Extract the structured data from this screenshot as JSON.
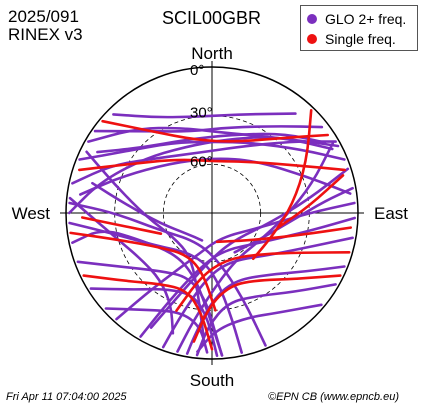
{
  "header": {
    "date": "2025/091",
    "rinex": "RINEX v3",
    "station": "SCIL00GBR"
  },
  "legend": {
    "items": [
      {
        "label": "GLO 2+ freq.",
        "color": "#7b2fbe"
      },
      {
        "label": "Single freq.",
        "color": "#ee1111"
      }
    ]
  },
  "footer": {
    "timestamp": "Fri Apr 11 07:04:00 2025",
    "credit": "©EPN CB (www.epncb.eu)"
  },
  "chart_data": {
    "type": "scatter",
    "projection": "polar skyplot",
    "directions": {
      "north": "North",
      "south": "South",
      "east": "East",
      "west": "West"
    },
    "elevation_rings": [
      "0°",
      "30°",
      "60°"
    ],
    "series": [
      {
        "name": "GLO 2+ freq.",
        "color": "#7b2fbe",
        "tracks": [
          [
            [
              300,
              2
            ],
            [
              318,
              20
            ],
            [
              340,
              34
            ],
            [
              8,
              40
            ],
            [
              32,
              34
            ],
            [
              52,
              18
            ],
            [
              62,
              2
            ]
          ],
          [
            [
              292,
              2
            ],
            [
              305,
              24
            ],
            [
              330,
              40
            ],
            [
              0,
              46
            ],
            [
              30,
              40
            ],
            [
              55,
              22
            ],
            [
              68,
              2
            ]
          ],
          [
            [
              282,
              2
            ],
            [
              296,
              22
            ],
            [
              318,
              44
            ],
            [
              350,
              52
            ],
            [
              22,
              46
            ],
            [
              48,
              24
            ],
            [
              60,
              2
            ]
          ],
          [
            [
              305,
              2
            ],
            [
              322,
              26
            ],
            [
              345,
              38
            ],
            [
              12,
              36
            ],
            [
              38,
              22
            ],
            [
              52,
              4
            ]
          ],
          [
            [
              270,
              2
            ],
            [
              285,
              18
            ],
            [
              308,
              36
            ],
            [
              338,
              46
            ],
            [
              10,
              44
            ],
            [
              40,
              28
            ],
            [
              62,
              6
            ]
          ],
          [
            [
              298,
              10
            ],
            [
              312,
              30
            ],
            [
              340,
              42
            ],
            [
              15,
              40
            ],
            [
              42,
              24
            ],
            [
              58,
              8
            ]
          ],
          [
            [
              315,
              4
            ],
            [
              330,
              22
            ],
            [
              352,
              30
            ],
            [
              18,
              26
            ],
            [
              40,
              10
            ]
          ],
          [
            [
              278,
              8
            ],
            [
              292,
              30
            ],
            [
              320,
              50
            ],
            [
              2,
              56
            ],
            [
              40,
              48
            ],
            [
              70,
              26
            ],
            [
              82,
              4
            ]
          ],
          [
            [
              258,
              2
            ],
            [
              262,
              22
            ],
            [
              248,
              44
            ],
            [
              222,
              56
            ],
            [
              196,
              50
            ],
            [
              182,
              28
            ],
            [
              176,
              2
            ]
          ],
          [
            [
              266,
              2
            ],
            [
              258,
              28
            ],
            [
              240,
              50
            ],
            [
              208,
              62
            ],
            [
              180,
              55
            ],
            [
              170,
              30
            ],
            [
              168,
              2
            ]
          ],
          [
            [
              250,
              2
            ],
            [
              240,
              24
            ],
            [
              222,
              42
            ],
            [
              200,
              48
            ],
            [
              184,
              36
            ],
            [
              178,
              14
            ],
            [
              176,
              2
            ]
          ],
          [
            [
              238,
              2
            ],
            [
              226,
              22
            ],
            [
              210,
              36
            ],
            [
              192,
              38
            ],
            [
              182,
              24
            ],
            [
              178,
              2
            ]
          ],
          [
            [
              274,
              2
            ],
            [
              270,
              30
            ],
            [
              252,
              56
            ],
            [
              210,
              70
            ],
            [
              172,
              60
            ],
            [
              160,
              34
            ],
            [
              158,
              2
            ]
          ],
          [
            [
              228,
              2
            ],
            [
              214,
              18
            ],
            [
              198,
              26
            ],
            [
              186,
              20
            ],
            [
              182,
              4
            ]
          ],
          [
            [
              100,
              2
            ],
            [
              108,
              24
            ],
            [
              126,
              46
            ],
            [
              156,
              58
            ],
            [
              182,
              52
            ],
            [
              196,
              28
            ],
            [
              200,
              2
            ]
          ],
          [
            [
              92,
              2
            ],
            [
              100,
              28
            ],
            [
              120,
              54
            ],
            [
              162,
              66
            ],
            [
              192,
              56
            ],
            [
              206,
              30
            ],
            [
              210,
              2
            ]
          ],
          [
            [
              112,
              2
            ],
            [
              122,
              22
            ],
            [
              140,
              40
            ],
            [
              162,
              46
            ],
            [
              180,
              36
            ],
            [
              188,
              14
            ],
            [
              190,
              2
            ]
          ],
          [
            [
              120,
              2
            ],
            [
              134,
              20
            ],
            [
              152,
              32
            ],
            [
              170,
              34
            ],
            [
              182,
              20
            ],
            [
              186,
              2
            ]
          ],
          [
            [
              86,
              2
            ],
            [
              90,
              30
            ],
            [
              108,
              60
            ],
            [
              160,
              74
            ],
            [
              200,
              62
            ],
            [
              218,
              32
            ],
            [
              222,
              2
            ]
          ],
          [
            [
              130,
              2
            ],
            [
              146,
              16
            ],
            [
              162,
              22
            ],
            [
              178,
              18
            ],
            [
              186,
              4
            ]
          ],
          [
            [
              80,
              2
            ],
            [
              84,
              20
            ],
            [
              95,
              40
            ],
            [
              118,
              56
            ],
            [
              150,
              62
            ]
          ],
          [
            [
              284,
              14
            ],
            [
              276,
              36
            ],
            [
              258,
              58
            ],
            [
              230,
              70
            ],
            [
              200,
              72
            ]
          ],
          [
            [
              60,
              4
            ],
            [
              74,
              26
            ],
            [
              92,
              44
            ],
            [
              120,
              56
            ],
            [
              150,
              58
            ],
            [
              176,
              46
            ],
            [
              190,
              22
            ],
            [
              194,
              2
            ]
          ],
          [
            [
              72,
              2
            ],
            [
              82,
              30
            ],
            [
              100,
              54
            ],
            [
              136,
              68
            ],
            [
              176,
              64
            ],
            [
              200,
              40
            ],
            [
              208,
              10
            ]
          ],
          [
            [
              296,
              4
            ],
            [
              286,
              28
            ],
            [
              266,
              50
            ],
            [
              238,
              62
            ],
            [
              206,
              60
            ],
            [
              190,
              40
            ],
            [
              184,
              14
            ]
          ],
          [
            [
              276,
              2
            ],
            [
              268,
              16
            ],
            [
              254,
              30
            ],
            [
              236,
              38
            ],
            [
              218,
              38
            ],
            [
              204,
              28
            ],
            [
              198,
              12
            ]
          ]
        ]
      },
      {
        "name": "Single freq.",
        "color": "#ee1111",
        "tracks": [
          [
            [
              310,
              2
            ],
            [
              324,
              28
            ],
            [
              348,
              44
            ],
            [
              18,
              44
            ],
            [
              42,
              28
            ],
            [
              56,
              4
            ]
          ],
          [
            [
              288,
              4
            ],
            [
              300,
              30
            ],
            [
              326,
              50
            ],
            [
              4,
              58
            ],
            [
              38,
              50
            ],
            [
              62,
              28
            ],
            [
              72,
              4
            ]
          ],
          [
            [
              262,
              2
            ],
            [
              254,
              30
            ],
            [
              236,
              52
            ],
            [
              210,
              60
            ],
            [
              188,
              52
            ],
            [
              178,
              30
            ]
          ],
          [
            [
              244,
              2
            ],
            [
              232,
              22
            ],
            [
              216,
              36
            ],
            [
              198,
              40
            ],
            [
              186,
              28
            ],
            [
              180,
              6
            ]
          ],
          [
            [
              106,
              2
            ],
            [
              114,
              30
            ],
            [
              132,
              52
            ],
            [
              164,
              60
            ],
            [
              190,
              50
            ],
            [
              200,
              26
            ]
          ],
          [
            [
              116,
              2
            ],
            [
              128,
              24
            ],
            [
              146,
              40
            ],
            [
              166,
              44
            ],
            [
              182,
              32
            ],
            [
              188,
              10
            ]
          ],
          [
            [
              96,
              4
            ],
            [
              104,
              34
            ],
            [
              124,
              60
            ],
            [
              170,
              72
            ]
          ],
          [
            [
              44,
              2
            ],
            [
              62,
              24
            ],
            [
              84,
              40
            ],
            [
              110,
              50
            ],
            [
              138,
              52
            ]
          ],
          [
            [
              268,
              10
            ],
            [
              262,
              34
            ],
            [
              248,
              56
            ]
          ],
          [
            [
              74,
              6
            ],
            [
              86,
              30
            ],
            [
              102,
              48
            ]
          ]
        ]
      }
    ],
    "grid": true
  }
}
